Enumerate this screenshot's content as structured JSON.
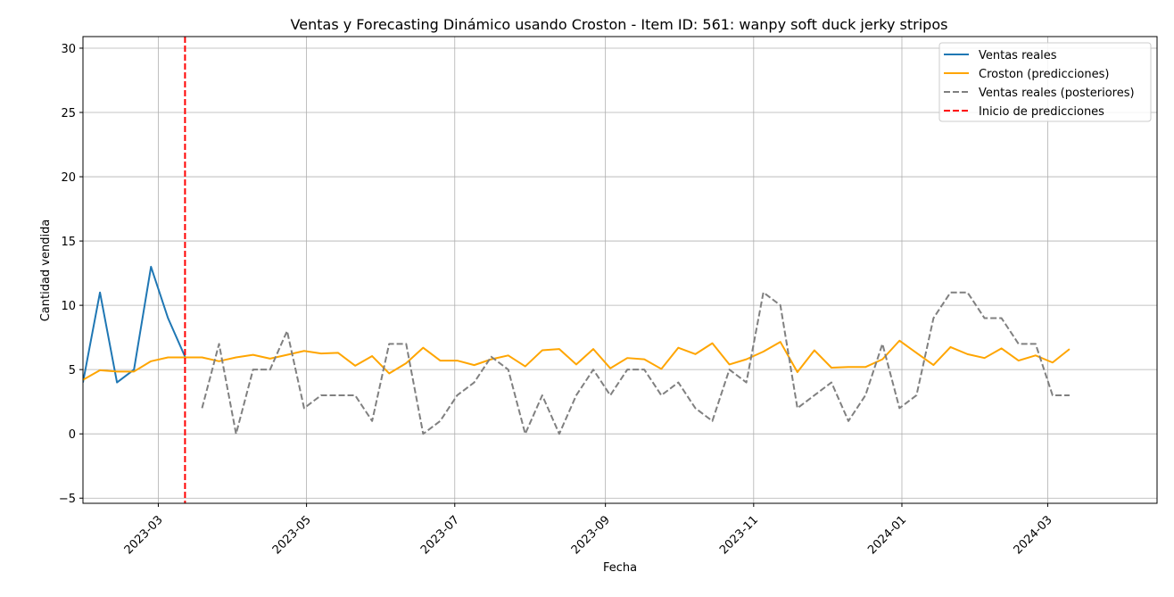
{
  "chart_data": {
    "type": "line",
    "title": "Ventas y Forecasting Dinámico usando Croston - Item ID: 561: wanpy soft duck jerky stripos",
    "xlabel": "Fecha",
    "ylabel": "Cantidad vendida",
    "ylim": [
      -5.4,
      30.9
    ],
    "xlim": [
      "2023-01-29",
      "2024-04-15"
    ],
    "x_ticks": [
      "2023-03",
      "2023-05",
      "2023-07",
      "2023-09",
      "2023-11",
      "2024-01",
      "2024-03"
    ],
    "y_ticks": [
      -5,
      0,
      5,
      10,
      15,
      20,
      25,
      30
    ],
    "grid": true,
    "legend_position": "upper right",
    "prediction_start": "2023-03-12",
    "series": [
      {
        "name": "Ventas reales",
        "color": "#1f77b4",
        "style": "solid",
        "x": [
          "2023-01-29",
          "2023-02-05",
          "2023-02-12",
          "2023-02-19",
          "2023-02-26",
          "2023-03-05",
          "2023-03-12"
        ],
        "values": [
          4,
          11,
          4,
          5,
          13,
          9,
          6
        ]
      },
      {
        "name": "Croston (predicciones)",
        "color": "#ffa500",
        "style": "solid",
        "x": [
          "2023-01-29",
          "2023-02-05",
          "2023-02-12",
          "2023-02-19",
          "2023-02-26",
          "2023-03-05",
          "2023-03-12",
          "2023-03-19",
          "2023-03-26",
          "2023-04-02",
          "2023-04-09",
          "2023-04-16",
          "2023-04-23",
          "2023-04-30",
          "2023-05-07",
          "2023-05-14",
          "2023-05-21",
          "2023-05-28",
          "2023-06-04",
          "2023-06-11",
          "2023-06-18",
          "2023-06-25",
          "2023-07-02",
          "2023-07-09",
          "2023-07-16",
          "2023-07-23",
          "2023-07-30",
          "2023-08-06",
          "2023-08-13",
          "2023-08-20",
          "2023-08-27",
          "2023-09-03",
          "2023-09-10",
          "2023-09-17",
          "2023-09-24",
          "2023-10-01",
          "2023-10-08",
          "2023-10-15",
          "2023-10-22",
          "2023-10-29",
          "2023-11-05",
          "2023-11-12",
          "2023-11-19",
          "2023-11-26",
          "2023-12-03",
          "2023-12-10",
          "2023-12-17",
          "2023-12-24",
          "2023-12-31",
          "2024-01-07",
          "2024-01-14",
          "2024-01-21",
          "2024-01-28",
          "2024-02-04",
          "2024-02-11",
          "2024-02-18",
          "2024-02-25",
          "2024-03-03",
          "2024-03-10"
        ],
        "values": [
          4.2,
          4.95,
          4.85,
          4.85,
          5.65,
          5.95,
          5.95,
          5.95,
          5.65,
          5.95,
          6.15,
          5.85,
          6.15,
          6.45,
          6.25,
          6.3,
          5.3,
          6.05,
          4.7,
          5.5,
          6.7,
          5.7,
          5.7,
          5.35,
          5.8,
          6.1,
          5.25,
          6.5,
          6.6,
          5.4,
          6.6,
          5.1,
          5.9,
          5.8,
          5.05,
          6.7,
          6.2,
          7.05,
          5.4,
          5.8,
          6.4,
          7.15,
          4.8,
          6.5,
          5.15,
          5.2,
          5.2,
          5.8,
          7.25,
          6.3,
          5.35,
          6.75,
          6.2,
          5.9,
          6.65,
          5.7,
          6.1,
          5.55,
          6.6
        ]
      },
      {
        "name": "Ventas reales (posteriores)",
        "color": "#808080",
        "style": "dashed",
        "x": [
          "2023-03-19",
          "2023-03-26",
          "2023-04-02",
          "2023-04-09",
          "2023-04-16",
          "2023-04-23",
          "2023-04-30",
          "2023-05-07",
          "2023-05-14",
          "2023-05-21",
          "2023-05-28",
          "2023-06-04",
          "2023-06-11",
          "2023-06-18",
          "2023-06-25",
          "2023-07-02",
          "2023-07-09",
          "2023-07-16",
          "2023-07-23",
          "2023-07-30",
          "2023-08-06",
          "2023-08-13",
          "2023-08-20",
          "2023-08-27",
          "2023-09-03",
          "2023-09-10",
          "2023-09-17",
          "2023-09-24",
          "2023-10-01",
          "2023-10-08",
          "2023-10-15",
          "2023-10-22",
          "2023-10-29",
          "2023-11-05",
          "2023-11-12",
          "2023-11-19",
          "2023-11-26",
          "2023-12-03",
          "2023-12-10",
          "2023-12-17",
          "2023-12-24",
          "2023-12-31",
          "2024-01-07",
          "2024-01-14",
          "2024-01-21",
          "2024-01-28",
          "2024-02-04",
          "2024-02-11",
          "2024-02-18",
          "2024-02-25",
          "2024-03-03",
          "2024-03-10"
        ],
        "values": [
          2,
          7,
          0,
          5,
          5,
          8,
          2,
          3,
          3,
          3,
          1,
          7,
          7,
          0,
          1,
          3,
          4,
          6,
          5,
          0,
          3,
          0,
          3,
          5,
          3,
          5,
          5,
          3,
          4,
          2,
          1,
          5,
          4,
          11,
          10,
          2,
          3,
          4,
          1,
          3,
          7,
          2,
          3,
          9,
          11,
          11,
          9,
          9,
          7,
          7,
          3,
          3
        ]
      },
      {
        "name": "Inicio de predicciones",
        "color": "#ff0000",
        "style": "dashed",
        "vline_x": "2023-03-12"
      }
    ]
  }
}
